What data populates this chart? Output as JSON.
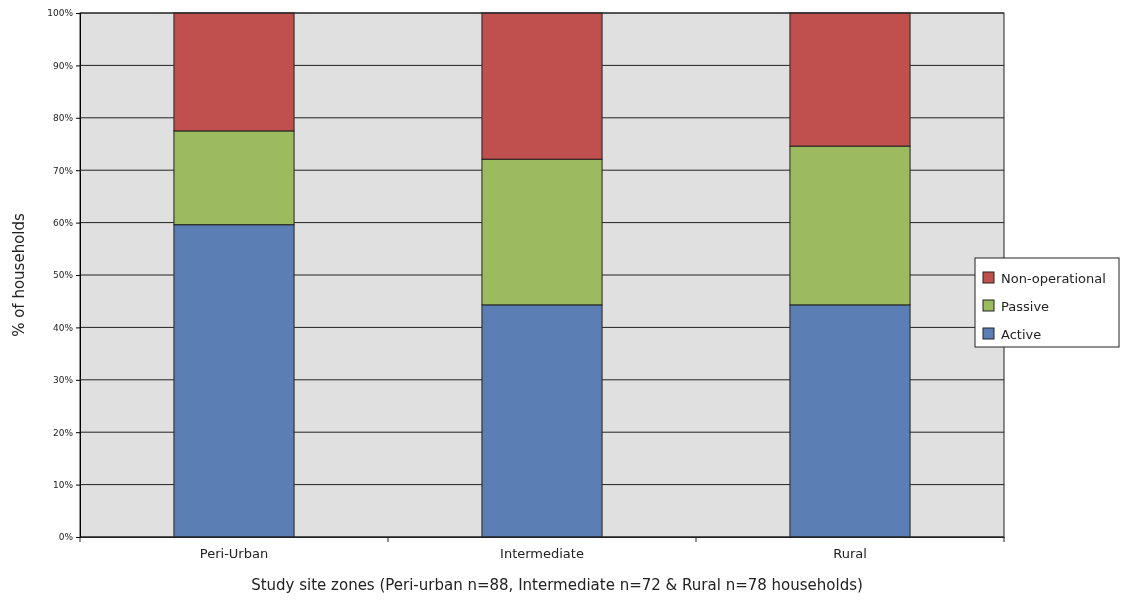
{
  "chart_data": {
    "type": "bar",
    "stacked": true,
    "ylabel": "% of households",
    "xlabel": "Study site zones (Peri-urban n=88, Intermediate n=72 & Rural n=78 households)",
    "categories": [
      "Peri-Urban",
      "Intermediate",
      "Rural"
    ],
    "series": [
      {
        "name": "Active",
        "color": "#5b7fb5",
        "values": [
          59.6,
          44.3,
          44.3
        ]
      },
      {
        "name": "Passive",
        "color": "#9bbb5e",
        "values": [
          17.9,
          27.8,
          30.3
        ]
      },
      {
        "name": "Non-operational",
        "color": "#c0504d",
        "values": [
          22.5,
          27.9,
          25.4
        ]
      }
    ],
    "ylim": [
      0,
      100
    ],
    "yticks": [
      {
        "value": 0,
        "label": "0%"
      },
      {
        "value": 10,
        "label": "10%"
      },
      {
        "value": 20,
        "label": "20%"
      },
      {
        "value": 30,
        "label": "30%"
      },
      {
        "value": 40,
        "label": "40%"
      },
      {
        "value": 50,
        "label": "50%"
      },
      {
        "value": 60,
        "label": "60%"
      },
      {
        "value": 70,
        "label": "70%"
      },
      {
        "value": 80,
        "label": "80%"
      },
      {
        "value": 90,
        "label": "90%"
      },
      {
        "value": 100,
        "label": "100%"
      }
    ],
    "grid": "y",
    "legend": "right"
  }
}
